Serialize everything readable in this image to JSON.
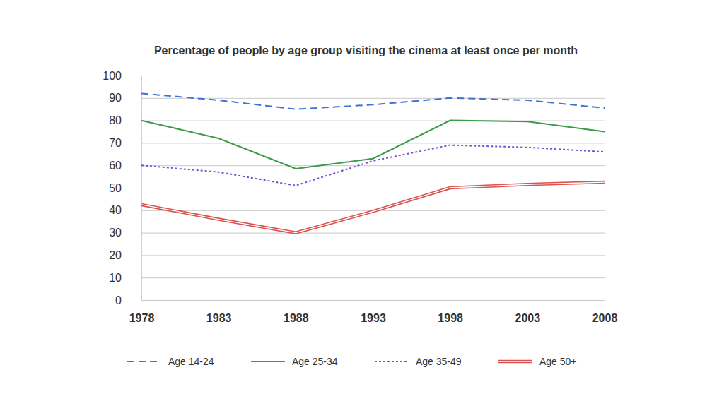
{
  "chart_data": {
    "type": "line",
    "title": "Percentage of people by age group visiting the cinema at least once per month",
    "x": [
      1978,
      1983,
      1988,
      1993,
      1998,
      2003,
      2008
    ],
    "xlim": [
      1978,
      2008
    ],
    "xticks": [
      1978,
      1983,
      1988,
      1993,
      1998,
      2003,
      2008
    ],
    "ylim": [
      0,
      100
    ],
    "yticks": [
      0,
      10,
      20,
      30,
      40,
      50,
      60,
      70,
      80,
      90,
      100
    ],
    "grid": true,
    "legend": "bottom",
    "series": [
      {
        "name": "Age 14-24",
        "color": "#3f72d6",
        "line_style": "dashed",
        "values": [
          92,
          89,
          85,
          87,
          90,
          89,
          85.5
        ]
      },
      {
        "name": "Age 25-34",
        "color": "#3c9a48",
        "line_style": "solid",
        "values": [
          80,
          72,
          58.5,
          63,
          80,
          79.5,
          75
        ]
      },
      {
        "name": "Age 35-49",
        "color": "#7a4fd8",
        "line_style": "dotted",
        "values": [
          60,
          57,
          51,
          62,
          69,
          68,
          66
        ]
      },
      {
        "name": "Age 50+",
        "color": "#d9534f",
        "line_style": "double",
        "values": [
          42.5,
          36,
          30,
          39.5,
          50,
          51.5,
          52.5
        ]
      }
    ]
  }
}
